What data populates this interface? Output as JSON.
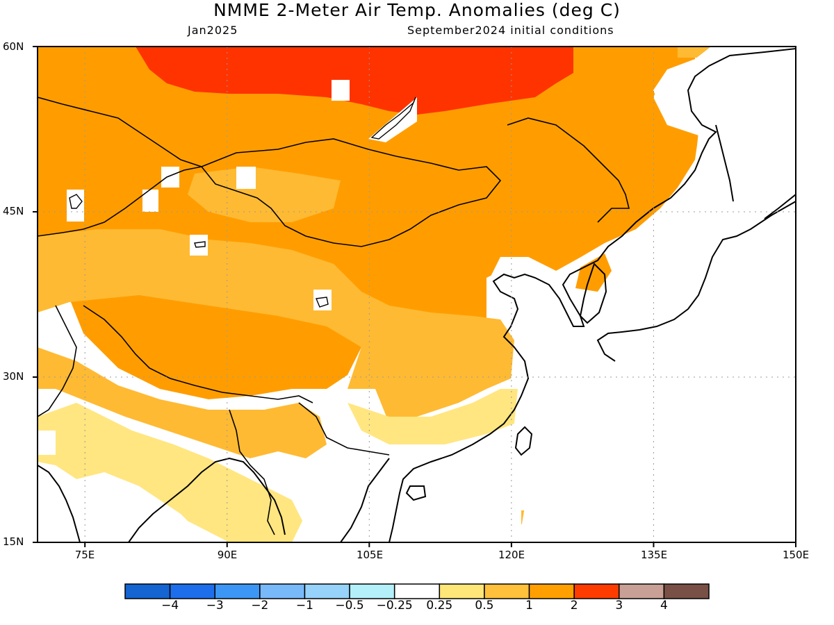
{
  "header": {
    "title": "NMME 2-Meter Air Temp. Anomalies (deg C)",
    "target_month": "Jan2025",
    "initial_conditions": "September2024 initial conditions"
  },
  "map": {
    "lat_labels": [
      "60N",
      "45N",
      "30N",
      "15N"
    ],
    "lon_labels": [
      "75E",
      "90E",
      "105E",
      "120E",
      "135E",
      "150E"
    ],
    "lat_range": [
      15,
      60
    ],
    "lon_range": [
      70,
      150
    ],
    "regions": [
      {
        "name": "northern-siberia-band",
        "category": "2 to 3",
        "color": "#ff3300"
      },
      {
        "name": "mongolia-north-china",
        "category": "1 to 2",
        "color": "#ff9900"
      },
      {
        "name": "tibet-central-asia",
        "category": "1 to 2",
        "color": "#ff9900"
      },
      {
        "name": "western-china-basin",
        "category": "0.5 to 1",
        "color": "#ffb833"
      },
      {
        "name": "india-indochina",
        "category": "0.25 to 0.5",
        "color": "#ffe680"
      },
      {
        "name": "east-china-sea-coast",
        "category": "0.25 to 0.5",
        "color": "#ffe680"
      }
    ]
  },
  "colorbar": {
    "colors": [
      "#1464d2",
      "#1e6eeb",
      "#3c96f5",
      "#78b9fa",
      "#96d2fa",
      "#b4f0fa",
      "#ffffff",
      "#ffe678",
      "#ffc03c",
      "#ffa000",
      "#ff3c00",
      "#c8a096",
      "#785046"
    ],
    "labels": [
      "−4",
      "−3",
      "−2",
      "−1",
      "−0.5",
      "−0.25",
      "0.25",
      "0.5",
      "1",
      "2",
      "3",
      "4"
    ]
  }
}
